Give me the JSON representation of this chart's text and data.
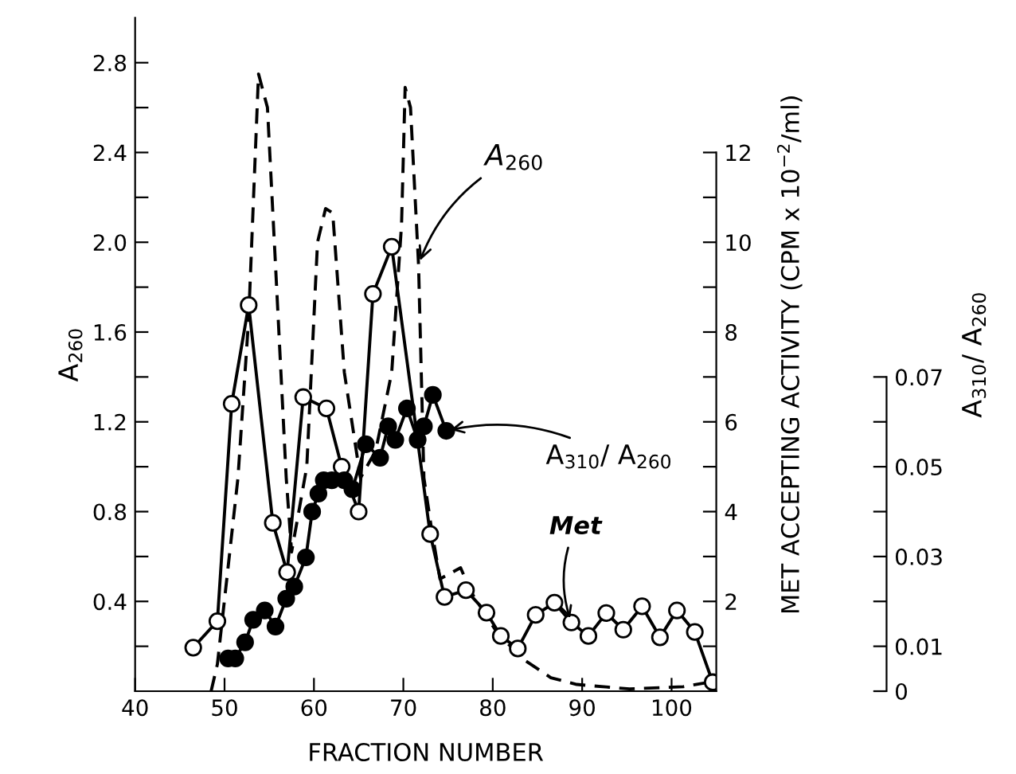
{
  "chart_data": {
    "type": "line",
    "xlabel": "FRACTION NUMBER",
    "ylabel": "A$_{260}$",
    "y2label": "MET ACCEPTING ACTIVITY (CPM x 10$^{−2}$/ml)",
    "y3label": "A$_{310}$/ A$_{260}$",
    "xlim": [
      40,
      105
    ],
    "xticks": [
      40,
      50,
      60,
      70,
      80,
      90,
      100
    ],
    "ylim": [
      0,
      3.0
    ],
    "yticks": [
      {
        "value": 0.2,
        "label": null
      },
      0.4,
      {
        "value": 0.6,
        "label": null
      },
      0.8,
      {
        "value": 1.0,
        "label": null
      },
      1.2,
      {
        "value": 1.4,
        "label": null
      },
      1.6,
      {
        "value": 1.8,
        "label": null
      },
      {
        "value": 2.0,
        "label": "2.0"
      },
      {
        "value": 2.2,
        "label": null
      },
      2.4,
      {
        "value": 2.6,
        "label": null
      },
      2.8
    ],
    "y2lim": [
      0,
      15
    ],
    "y2ticks": [
      {
        "value": 1,
        "label": null
      },
      2,
      {
        "value": 3,
        "label": null
      },
      4,
      {
        "value": 5,
        "label": null
      },
      6,
      {
        "value": 7,
        "label": null
      },
      8,
      {
        "value": 9,
        "label": null
      },
      10,
      {
        "value": 11,
        "label": null
      },
      12
    ],
    "y3lim": [
      0,
      0.15
    ],
    "y3ticks": [
      0,
      0.01,
      {
        "value": 0.02,
        "label": null
      },
      0.03,
      {
        "value": 0.04,
        "label": null
      },
      0.05,
      {
        "value": 0.06,
        "label": null
      },
      0.07
    ],
    "series": [
      {
        "name": "A$_{260}$",
        "color": "#000000",
        "axis": "y",
        "marker": "none",
        "line_style": "dashed",
        "x": [
          48.5,
          49.2,
          51.5,
          52.7,
          53.8,
          54.8,
          55.7,
          56.9,
          57.5,
          59.2,
          60.4,
          61.3,
          62.1,
          63.4,
          65.2,
          66.9,
          68.7,
          69.8,
          70.2,
          70.8,
          71.7,
          72.3,
          73.2,
          74.1,
          76.4,
          77.6,
          80.5,
          83.5,
          86.5,
          89.4,
          95.3,
          101.3,
          104.2
        ],
        "values": [
          0.0,
          0.12,
          0.95,
          1.66,
          2.75,
          2.6,
          1.9,
          0.95,
          0.62,
          1.0,
          2.0,
          2.15,
          2.13,
          1.42,
          0.95,
          1.07,
          1.42,
          2.08,
          2.69,
          2.6,
          1.9,
          0.95,
          0.71,
          0.5,
          0.55,
          0.44,
          0.26,
          0.14,
          0.06,
          0.03,
          0.01,
          0.02,
          0.04
        ]
      },
      {
        "name": "Met",
        "color": "#000000",
        "axis": "y2",
        "marker": "circle",
        "line_style": "solid",
        "x": [
          46.5,
          49.2,
          50.8,
          52.7,
          55.4,
          57.0,
          58.8,
          61.4,
          63.1,
          65.0,
          66.6,
          68.7,
          73.0,
          74.6,
          77.0,
          79.3,
          80.9,
          82.8,
          84.8,
          86.9,
          88.8,
          90.7,
          92.7,
          94.6,
          96.7,
          98.7,
          100.6,
          102.6,
          104.6
        ],
        "values": [
          0.97,
          1.56,
          6.4,
          8.6,
          3.75,
          2.65,
          6.55,
          6.3,
          5.0,
          4.0,
          8.85,
          9.9,
          3.5,
          2.1,
          2.25,
          1.75,
          1.23,
          0.95,
          1.7,
          1.97,
          1.53,
          1.23,
          1.74,
          1.37,
          1.89,
          1.2,
          1.8,
          1.32,
          0.2
        ]
      },
      {
        "name": "A$_{310}$/ A$_{260}$",
        "color": "#000000",
        "axis": "y3",
        "marker": "circle",
        "line_style": "solid",
        "x": [
          50.4,
          51.2,
          52.3,
          53.2,
          54.5,
          55.7,
          56.9,
          57.8,
          59.1,
          59.8,
          60.5,
          61.1,
          62.0,
          63.4,
          64.3,
          65.8,
          67.4,
          68.3,
          69.1,
          70.4,
          71.6,
          72.3,
          73.3,
          74.8
        ],
        "values": [
          0.0073,
          0.0073,
          0.0109,
          0.0159,
          0.018,
          0.0144,
          0.0206,
          0.0233,
          0.0298,
          0.04,
          0.044,
          0.047,
          0.047,
          0.047,
          0.045,
          0.055,
          0.052,
          0.059,
          0.056,
          0.063,
          0.056,
          0.059,
          0.066,
          0.058
        ]
      }
    ]
  }
}
